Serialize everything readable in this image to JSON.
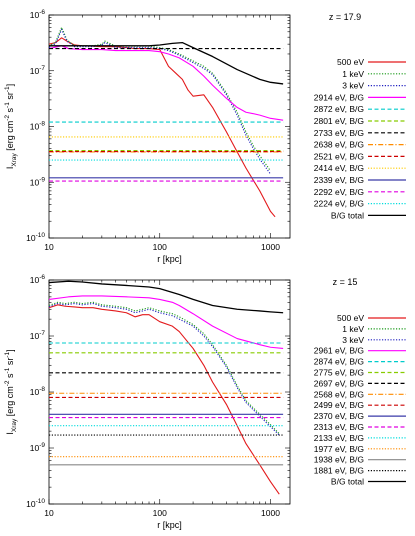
{
  "chart_data": [
    {
      "type": "line",
      "title": "z = 17.9",
      "xlabel": "r [kpc]",
      "ylabel": "I_Xray [erg cm^-2 s^-1 sr^-1]",
      "xscale": "log",
      "yscale": "log",
      "xlim": [
        10,
        1500
      ],
      "ylim": [
        1e-10,
        1e-06
      ],
      "x_ticks": [
        "10",
        "100",
        "1000"
      ],
      "y_ticks": [
        "10^-10",
        "10^-9",
        "10^-8",
        "10^-7",
        "10^-6"
      ],
      "legend_position": "right",
      "series": [
        {
          "name": "500 eV",
          "color": "#e31a1c",
          "style": "solid",
          "x": [
            10,
            11.5,
            13,
            14.5,
            17,
            20,
            25,
            30,
            40,
            50,
            60,
            80,
            100,
            120,
            140,
            160,
            180,
            200,
            250,
            300,
            400,
            500,
            600,
            800,
            1000,
            1100
          ],
          "y": [
            3e-07,
            3.2e-07,
            3.9e-07,
            3.4e-07,
            2.9e-07,
            2.8e-07,
            2.75e-07,
            2.7e-07,
            2.7e-07,
            2.6e-07,
            2.5e-07,
            2.5e-07,
            2.4e-07,
            1.2e-07,
            9e-08,
            7e-08,
            4.5e-08,
            3.5e-08,
            3.7e-08,
            2.2e-08,
            8e-09,
            3.5e-09,
            1.8e-09,
            7e-10,
            3e-10,
            2.4e-10
          ]
        },
        {
          "name": "1 keV",
          "color": "#1a9a1a",
          "style": "dotted",
          "x": [
            10,
            11.5,
            13,
            14.5,
            17,
            20,
            25,
            30,
            32,
            40,
            60,
            80,
            100,
            120,
            150,
            200,
            250,
            300,
            400,
            500,
            600,
            700,
            800,
            1000
          ],
          "y": [
            2.7e-07,
            3.3e-07,
            6e-07,
            3.6e-07,
            2.8e-07,
            2.8e-07,
            2.8e-07,
            3e-07,
            3.4e-07,
            2.75e-07,
            2.75e-07,
            2.75e-07,
            2.6e-07,
            2.4e-07,
            2e-07,
            1.5e-07,
            1.2e-07,
            9e-08,
            4e-08,
            1.8e-08,
            8e-09,
            4.5e-09,
            3e-09,
            1.6e-09
          ]
        },
        {
          "name": "3 keV",
          "color": "#2020c0",
          "style": "dotted",
          "x": [
            10,
            11.5,
            13,
            14.5,
            17,
            20,
            25,
            30,
            32,
            40,
            60,
            80,
            100,
            120,
            150,
            200,
            250,
            300,
            400,
            500,
            600,
            700,
            800,
            1000
          ],
          "y": [
            2.6e-07,
            3.1e-07,
            5.5e-07,
            3.4e-07,
            2.7e-07,
            2.7e-07,
            2.7e-07,
            2.9e-07,
            3.2e-07,
            2.6e-07,
            2.6e-07,
            2.6e-07,
            2.5e-07,
            2.3e-07,
            1.9e-07,
            1.4e-07,
            1.1e-07,
            8.5e-08,
            3.7e-08,
            1.6e-08,
            7e-09,
            4e-09,
            2.6e-09,
            1.4e-09
          ]
        },
        {
          "name": "2914 eV, B/G",
          "color": "#ff00ff",
          "style": "solid",
          "x": [
            10,
            13,
            15,
            20,
            30,
            40,
            60,
            80,
            100,
            120,
            150,
            200,
            250,
            300,
            400,
            500,
            600,
            700,
            800,
            1000,
            1300
          ],
          "y": [
            2.5e-07,
            2.8e-07,
            2.5e-07,
            2.4e-07,
            2.4e-07,
            2.3e-07,
            2.3e-07,
            2.3e-07,
            2.2e-07,
            2e-07,
            1.7e-07,
            1.2e-07,
            8e-08,
            5.5e-08,
            3.2e-08,
            2.2e-08,
            1.8e-08,
            1.7e-08,
            1.6e-08,
            1.4e-08,
            1.3e-08
          ]
        },
        {
          "name": "2872 eV, B/G",
          "color": "#00cccc",
          "style": "dashed",
          "x": [
            10,
            1300
          ],
          "y": [
            1.2e-08,
            1.2e-08
          ]
        },
        {
          "name": "2801 eV, B/G",
          "color": "#88cc00",
          "style": "dashed",
          "x": [
            10,
            1300
          ],
          "y": [
            3.7e-09,
            3.7e-09
          ]
        },
        {
          "name": "2733 eV, B/G",
          "color": "#000000",
          "style": "dashed",
          "x": [
            10,
            1300
          ],
          "y": [
            2.5e-07,
            2.5e-07
          ]
        },
        {
          "name": "2638 eV, B/G",
          "color": "#ff8c00",
          "style": "dashdot",
          "x": [
            10,
            1300
          ],
          "y": [
            3.5e-09,
            3.5e-09
          ]
        },
        {
          "name": "2521 eV, B/G",
          "color": "#cc0000",
          "style": "dashed",
          "x": [
            10,
            1300
          ],
          "y": [
            3.55e-09,
            3.55e-09
          ]
        },
        {
          "name": "2414 eV, B/G",
          "color": "#ffcc00",
          "style": "dotted",
          "x": [
            10,
            1300
          ],
          "y": [
            6.5e-09,
            6.5e-09
          ]
        },
        {
          "name": "2339 eV, B/G",
          "color": "#3a3aa8",
          "style": "solid",
          "x": [
            10,
            1300
          ],
          "y": [
            1.2e-09,
            1.2e-09
          ]
        },
        {
          "name": "2292 eV, B/G",
          "color": "#e000e0",
          "style": "dashed",
          "x": [
            10,
            1300
          ],
          "y": [
            1.05e-09,
            1.05e-09
          ]
        },
        {
          "name": "2224 eV, B/G",
          "color": "#00dddd",
          "style": "dotted",
          "x": [
            10,
            1300
          ],
          "y": [
            2.5e-09,
            2.5e-09
          ]
        },
        {
          "name": "B/G total",
          "color": "#000000",
          "style": "solid",
          "x": [
            10,
            20,
            30,
            50,
            80,
            100,
            130,
            160,
            200,
            300,
            500,
            800,
            1000,
            1300
          ],
          "y": [
            2.8e-07,
            2.8e-07,
            2.8e-07,
            2.8e-07,
            2.8e-07,
            2.9e-07,
            3.1e-07,
            3.2e-07,
            2.6e-07,
            1.8e-07,
            1.05e-07,
            7e-08,
            6.2e-08,
            5.8e-08
          ]
        }
      ]
    },
    {
      "type": "line",
      "title": "z = 15",
      "xlabel": "r [kpc]",
      "ylabel": "I_Xray [erg cm^-2 s^-1 sr^-1]",
      "xscale": "log",
      "yscale": "log",
      "xlim": [
        10,
        1500
      ],
      "ylim": [
        1e-10,
        1e-06
      ],
      "x_ticks": [
        "10",
        "100",
        "1000"
      ],
      "y_ticks": [
        "10^-10",
        "10^-9",
        "10^-8",
        "10^-7",
        "10^-6"
      ],
      "legend_position": "right",
      "series": [
        {
          "name": "500 eV",
          "color": "#e31a1c",
          "style": "solid",
          "x": [
            10,
            12,
            14,
            17,
            20,
            25,
            30,
            40,
            50,
            60,
            70,
            80,
            100,
            130,
            150,
            200,
            250,
            300,
            400,
            500,
            600,
            800,
            1000,
            1200
          ],
          "y": [
            3.2e-07,
            3.6e-07,
            3.4e-07,
            3.3e-07,
            3.2e-07,
            3.2e-07,
            3e-07,
            2.8e-07,
            2.6e-07,
            2.2e-07,
            2.4e-07,
            2.4e-07,
            1.8e-07,
            1.5e-07,
            1.2e-07,
            6e-08,
            3e-08,
            1.5e-08,
            6e-09,
            2.5e-09,
            1.2e-09,
            5e-10,
            2.5e-10,
            1.5e-10
          ]
        },
        {
          "name": "1 keV",
          "color": "#1a9a1a",
          "style": "dotted",
          "x": [
            10,
            12,
            14,
            17,
            20,
            25,
            30,
            40,
            50,
            60,
            70,
            80,
            100,
            130,
            150,
            200,
            250,
            300,
            400,
            500,
            600,
            800,
            1000,
            1200
          ],
          "y": [
            3.5e-07,
            4e-07,
            3.8e-07,
            4e-07,
            3.8e-07,
            4e-07,
            3.6e-07,
            3.4e-07,
            3.2e-07,
            2.8e-07,
            3e-07,
            3.2e-07,
            2.8e-07,
            2.5e-07,
            2.2e-07,
            1.6e-07,
            1.1e-07,
            7e-08,
            3e-08,
            1.3e-08,
            7e-09,
            4e-09,
            2.6e-09,
            1.8e-09
          ]
        },
        {
          "name": "3 keV",
          "color": "#2020c0",
          "style": "dotted",
          "x": [
            10,
            12,
            14,
            17,
            20,
            25,
            30,
            40,
            50,
            60,
            70,
            80,
            100,
            130,
            150,
            200,
            250,
            300,
            400,
            500,
            600,
            800,
            1000,
            1200
          ],
          "y": [
            3.3e-07,
            3.8e-07,
            3.6e-07,
            3.8e-07,
            3.6e-07,
            3.8e-07,
            3.4e-07,
            3.2e-07,
            3e-07,
            2.6e-07,
            2.8e-07,
            3e-07,
            2.6e-07,
            2.3e-07,
            2e-07,
            1.5e-07,
            1e-07,
            6.5e-08,
            2.8e-08,
            1.2e-08,
            6.5e-09,
            3.7e-09,
            2.4e-09,
            1.7e-09
          ]
        },
        {
          "name": "2961 eV, B/G",
          "color": "#ff00ff",
          "style": "solid",
          "x": [
            10,
            15,
            20,
            30,
            50,
            80,
            100,
            130,
            150,
            200,
            300,
            500,
            800,
            1000,
            1300
          ],
          "y": [
            4.5e-07,
            5e-07,
            5.2e-07,
            5.2e-07,
            5e-07,
            4.8e-07,
            4.5e-07,
            4e-07,
            3.5e-07,
            2.5e-07,
            1.5e-07,
            9e-08,
            7e-08,
            6.3e-08,
            6e-08
          ]
        },
        {
          "name": "2874 eV, B/G",
          "color": "#00cccc",
          "style": "dashed",
          "x": [
            10,
            1300
          ],
          "y": [
            7.5e-08,
            7.5e-08
          ]
        },
        {
          "name": "2775 eV, B/G",
          "color": "#88cc00",
          "style": "dashed",
          "x": [
            10,
            1300
          ],
          "y": [
            5e-08,
            5e-08
          ]
        },
        {
          "name": "2697 eV, B/G",
          "color": "#000000",
          "style": "dashed",
          "x": [
            10,
            1300
          ],
          "y": [
            2.2e-08,
            2.2e-08
          ]
        },
        {
          "name": "2568 eV, B/G",
          "color": "#ff8c00",
          "style": "dashdot",
          "x": [
            10,
            1300
          ],
          "y": [
            9.5e-09,
            9.5e-09
          ]
        },
        {
          "name": "2499 eV, B/G",
          "color": "#cc0000",
          "style": "dashed",
          "x": [
            10,
            1300
          ],
          "y": [
            8e-09,
            8e-09
          ]
        },
        {
          "name": "2370 eV, B/G",
          "color": "#3a3aa8",
          "style": "solid",
          "x": [
            10,
            1300
          ],
          "y": [
            4e-09,
            4e-09
          ]
        },
        {
          "name": "2313 eV, B/G",
          "color": "#e000e0",
          "style": "dashed",
          "x": [
            10,
            1300
          ],
          "y": [
            3.5e-09,
            3.5e-09
          ]
        },
        {
          "name": "2133 eV, B/G",
          "color": "#00dddd",
          "style": "dotted",
          "x": [
            10,
            1300
          ],
          "y": [
            2.5e-09,
            2.5e-09
          ]
        },
        {
          "name": "1977 eV, B/G",
          "color": "#ff8c00",
          "style": "dotted",
          "x": [
            10,
            1300
          ],
          "y": [
            7e-10,
            7e-10
          ]
        },
        {
          "name": "1938 eV, B/G",
          "color": "#888888",
          "style": "solid",
          "x": [
            10,
            1300
          ],
          "y": [
            5e-10,
            5e-10
          ]
        },
        {
          "name": "1881 eV, B/G",
          "color": "#000000",
          "style": "dotted",
          "x": [
            10,
            1300
          ],
          "y": [
            1.7e-09,
            1.7e-09
          ]
        },
        {
          "name": "B/G total",
          "color": "#000000",
          "style": "solid",
          "x": [
            10,
            15,
            20,
            30,
            50,
            80,
            100,
            150,
            200,
            300,
            500,
            800,
            1000,
            1300
          ],
          "y": [
            9e-07,
            9.5e-07,
            9.2e-07,
            8.5e-07,
            8e-07,
            7.5e-07,
            7e-07,
            5.5e-07,
            4.5e-07,
            3.5e-07,
            3e-07,
            2.8e-07,
            2.7e-07,
            2.6e-07
          ]
        }
      ]
    }
  ]
}
